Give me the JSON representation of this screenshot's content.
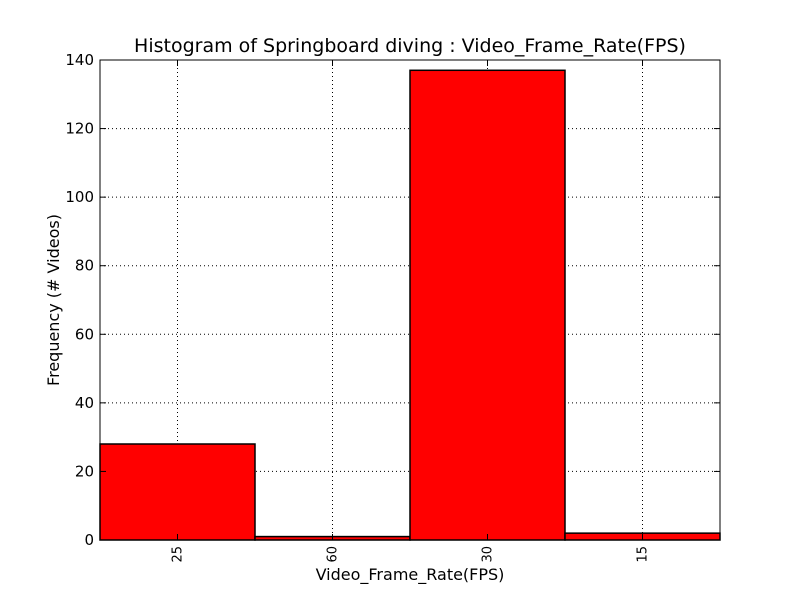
{
  "chart_data": {
    "type": "bar",
    "title": "Histogram of Springboard diving : Video_Frame_Rate(FPS)",
    "xlabel": "Video_Frame_Rate(FPS)",
    "ylabel": "Frequency (# Videos)",
    "categories": [
      "25",
      "60",
      "30",
      "15"
    ],
    "values": [
      28,
      1,
      137,
      2
    ],
    "ylim": [
      0,
      140
    ],
    "yticks": [
      0,
      20,
      40,
      60,
      80,
      100,
      120,
      140
    ],
    "grid": true,
    "bar_color": "#ff0000",
    "edge_color": "#000000"
  }
}
